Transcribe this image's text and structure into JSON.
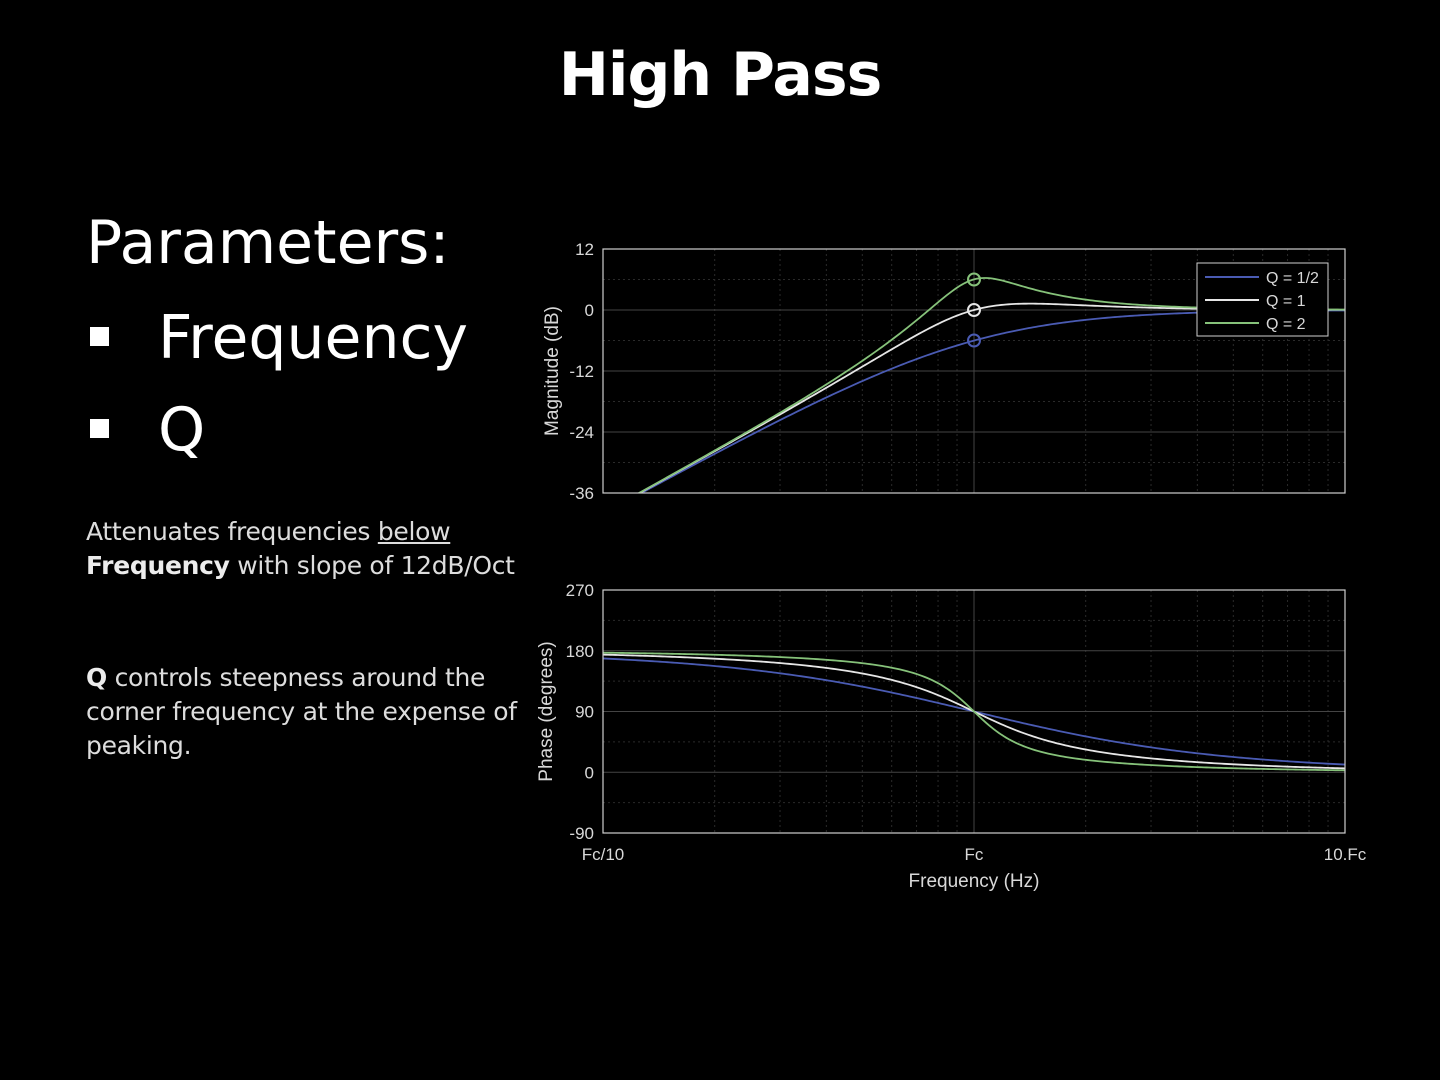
{
  "slide": {
    "title": "High Pass",
    "params_heading": "Parameters:",
    "params": [
      "Frequency",
      "Q"
    ],
    "desc1": {
      "pre": "Attenuates frequencies ",
      "underlined": "below",
      "bold": "Frequency",
      "post": " with slope of 12dB/Oct"
    },
    "desc2": {
      "bold": "Q",
      "post": " controls steepness around the corner frequency at the expense of peaking."
    }
  },
  "chart_data": [
    {
      "type": "line",
      "ylabel": "Magnitude (dB)",
      "x_scale": "log",
      "x_ticks": [
        "Fc/10",
        "Fc",
        "10.Fc"
      ],
      "y_ticks": [
        12,
        0,
        -12,
        -24,
        -36
      ],
      "ylim": [
        -36,
        12
      ],
      "grid": true,
      "legend": "top-right",
      "marker_at": "Fc",
      "series": [
        {
          "name": "Q = 1/2",
          "q": 0.5,
          "color": "#4a5bb3",
          "at_fc": -6
        },
        {
          "name": "Q = 1",
          "q": 1,
          "color": "#e6e6e6",
          "at_fc": 0
        },
        {
          "name": "Q = 2",
          "q": 2,
          "color": "#86c27a",
          "at_fc": 6
        }
      ]
    },
    {
      "type": "line",
      "ylabel": "Phase (degrees)",
      "xlabel": "Frequency (Hz)",
      "x_scale": "log",
      "x_ticks": [
        "Fc/10",
        "Fc",
        "10.Fc"
      ],
      "y_ticks": [
        270,
        180,
        90,
        0,
        -90
      ],
      "ylim": [
        -90,
        270
      ],
      "grid": true,
      "series": [
        {
          "name": "Q = 1/2",
          "q": 0.5,
          "color": "#4a5bb3",
          "at_fc": 90
        },
        {
          "name": "Q = 1",
          "q": 1,
          "color": "#e6e6e6",
          "at_fc": 90
        },
        {
          "name": "Q = 2",
          "q": 2,
          "color": "#86c27a",
          "at_fc": 90
        }
      ]
    }
  ]
}
